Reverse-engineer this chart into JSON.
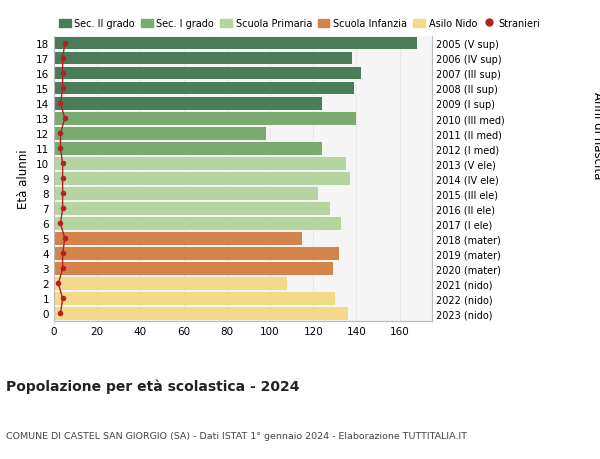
{
  "ages": [
    18,
    17,
    16,
    15,
    14,
    13,
    12,
    11,
    10,
    9,
    8,
    7,
    6,
    5,
    4,
    3,
    2,
    1,
    0
  ],
  "years": [
    "2005 (V sup)",
    "2006 (IV sup)",
    "2007 (III sup)",
    "2008 (II sup)",
    "2009 (I sup)",
    "2010 (III med)",
    "2011 (II med)",
    "2012 (I med)",
    "2013 (V ele)",
    "2014 (IV ele)",
    "2015 (III ele)",
    "2016 (II ele)",
    "2017 (I ele)",
    "2018 (mater)",
    "2019 (mater)",
    "2020 (mater)",
    "2021 (nido)",
    "2022 (nido)",
    "2023 (nido)"
  ],
  "values": [
    168,
    138,
    142,
    139,
    124,
    140,
    98,
    124,
    135,
    137,
    122,
    128,
    133,
    115,
    132,
    129,
    108,
    130,
    136
  ],
  "stranieri": [
    5,
    4,
    4,
    4,
    3,
    5,
    3,
    3,
    4,
    4,
    4,
    4,
    3,
    5,
    4,
    4,
    2,
    4,
    3
  ],
  "colors": [
    "#4a7c59",
    "#4a7c59",
    "#4a7c59",
    "#4a7c59",
    "#4a7c59",
    "#7aab6e",
    "#7aab6e",
    "#7aab6e",
    "#b5d4a0",
    "#b5d4a0",
    "#b5d4a0",
    "#b5d4a0",
    "#b5d4a0",
    "#d4834a",
    "#d4834a",
    "#d4834a",
    "#f5d98a",
    "#f5d98a",
    "#f5d98a"
  ],
  "legend_labels": [
    "Sec. II grado",
    "Sec. I grado",
    "Scuola Primaria",
    "Scuola Infanzia",
    "Asilo Nido",
    "Stranieri"
  ],
  "legend_colors": [
    "#4a7c59",
    "#7aab6e",
    "#b5d4a0",
    "#d4834a",
    "#f5d98a",
    "#b22222"
  ],
  "title": "Popolazione per età scolastica - 2024",
  "subtitle": "COMUNE DI CASTEL SAN GIORGIO (SA) - Dati ISTAT 1° gennaio 2024 - Elaborazione TUTTITALIA.IT",
  "ylabel_left": "Età alunni",
  "ylabel_right": "Anni di nascita",
  "xlim": [
    0,
    175
  ],
  "xticks": [
    0,
    20,
    40,
    60,
    80,
    100,
    120,
    140,
    160
  ],
  "bar_height": 0.82,
  "stranieri_color": "#b22222",
  "bg_color": "#ffffff",
  "plot_bg_color": "#f5f5f5",
  "grid_color": "#dddddd",
  "spine_color": "#bbbbbb"
}
